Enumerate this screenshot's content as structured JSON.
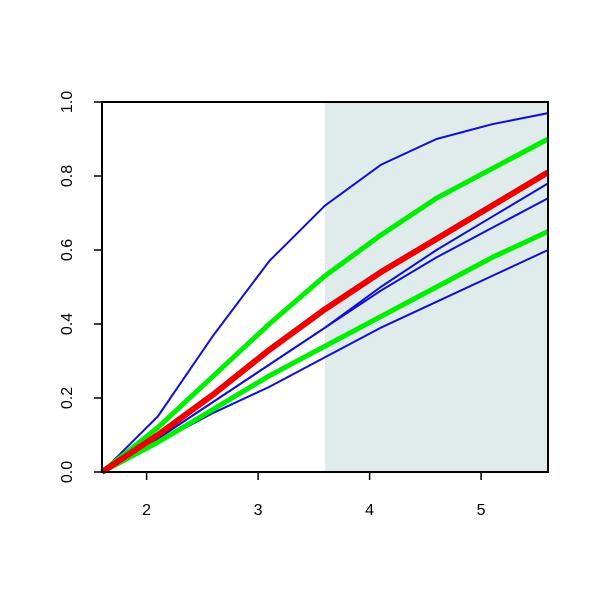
{
  "chart_data": {
    "type": "line",
    "x": [
      1.6,
      2.1,
      2.6,
      3.1,
      3.6,
      4.1,
      4.6,
      5.1,
      5.6
    ],
    "series": [
      {
        "color": "#1010d0",
        "width": 2,
        "values": [
          0,
          0.15,
          0.37,
          0.57,
          0.72,
          0.83,
          0.9,
          0.94,
          0.97
        ]
      },
      {
        "color": "#1010d0",
        "width": 2,
        "values": [
          0,
          0.09,
          0.19,
          0.29,
          0.39,
          0.5,
          0.6,
          0.69,
          0.78
        ]
      },
      {
        "color": "#1010d0",
        "width": 2,
        "values": [
          0,
          0.09,
          0.19,
          0.29,
          0.39,
          0.49,
          0.58,
          0.66,
          0.74
        ]
      },
      {
        "color": "#1010d0",
        "width": 2,
        "values": [
          0,
          0.08,
          0.16,
          0.23,
          0.31,
          0.39,
          0.46,
          0.53,
          0.6
        ]
      },
      {
        "color": "#00ee00",
        "width": 5,
        "values": [
          0,
          0.12,
          0.26,
          0.4,
          0.53,
          0.64,
          0.74,
          0.82,
          0.9
        ]
      },
      {
        "color": "#00ee00",
        "width": 5,
        "values": [
          0,
          0.08,
          0.17,
          0.26,
          0.34,
          0.42,
          0.5,
          0.58,
          0.65
        ]
      },
      {
        "color": "#ee0000",
        "width": 6,
        "values": [
          0,
          0.1,
          0.21,
          0.33,
          0.44,
          0.54,
          0.63,
          0.72,
          0.81
        ]
      }
    ],
    "highlight": {
      "xlim": [
        3.6,
        5.6
      ],
      "color": "#e0ecec"
    },
    "xlim": [
      1.6,
      5.6
    ],
    "xticks": [
      2,
      3,
      4,
      5
    ],
    "ylim": [
      0,
      1
    ],
    "yticks": [
      {
        "value": 0,
        "label": "0.0"
      },
      {
        "value": 0.2,
        "label": "0.2"
      },
      {
        "value": 0.4,
        "label": "0.4"
      },
      {
        "value": 0.6,
        "label": "0.6"
      },
      {
        "value": 0.8,
        "label": "0.8"
      },
      {
        "value": 1,
        "label": "1.0"
      }
    ]
  }
}
